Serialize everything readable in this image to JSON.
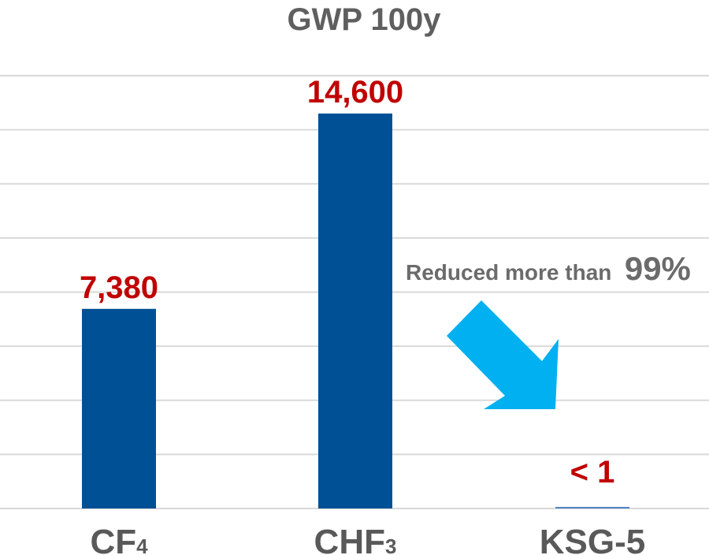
{
  "chart_data": {
    "type": "bar",
    "title": "GWP 100y",
    "categories": [
      {
        "main": "CF",
        "sub": "4"
      },
      {
        "main": "CHF",
        "sub": "3"
      },
      {
        "main": "KSG-5",
        "sub": ""
      }
    ],
    "values": [
      7380,
      14600,
      1
    ],
    "value_labels": [
      "7,380",
      "14,600",
      "< 1"
    ],
    "ylim": [
      0,
      16000
    ],
    "grid": true,
    "annotation": {
      "text": "Reduced more than",
      "emphasis": "99%"
    },
    "colors": {
      "bar": "#005096",
      "value_label": "#c00000",
      "arrow": "#00b0f0",
      "grid": "#d9d9d9",
      "text": "#595959"
    }
  }
}
